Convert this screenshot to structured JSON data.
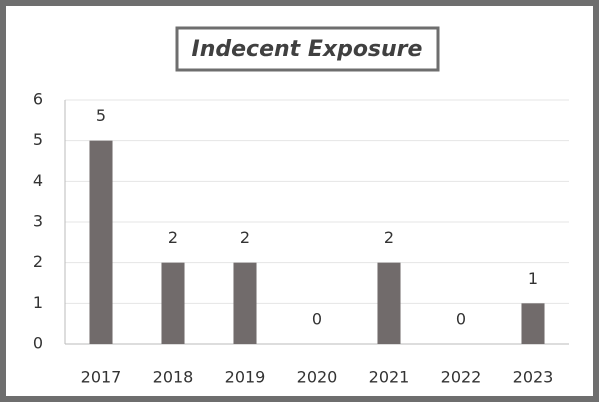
{
  "chart_data": {
    "type": "bar",
    "title": "Indecent Exposure",
    "categories": [
      "2017",
      "2018",
      "2019",
      "2020",
      "2021",
      "2022",
      "2023"
    ],
    "values": [
      5,
      2,
      2,
      0,
      2,
      0,
      1
    ],
    "color": "#716b6b",
    "ylim": [
      0,
      6
    ],
    "yticks": [
      0,
      1,
      2,
      3,
      4,
      5,
      6
    ],
    "grid": true
  }
}
